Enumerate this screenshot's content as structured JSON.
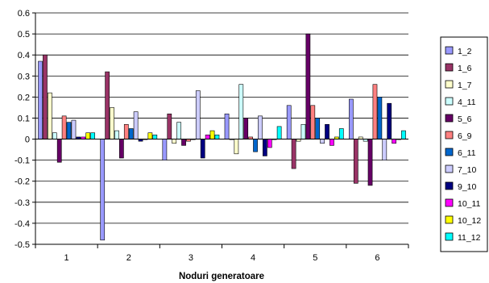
{
  "chart_data": {
    "type": "bar",
    "title": "",
    "xlabel": "Noduri generatoare",
    "ylabel": "",
    "categories": [
      "1",
      "2",
      "3",
      "4",
      "5",
      "6"
    ],
    "ylim": [
      -0.5,
      0.6
    ],
    "yticks": [
      0.6,
      0.5,
      0.4,
      0.3,
      0.2,
      0.1,
      0,
      -0.1,
      -0.2,
      -0.3,
      -0.4,
      -0.5
    ],
    "yticklabels": [
      "0.6",
      "0.5",
      "0.4",
      "0.3",
      "0.2",
      "0.1",
      "0",
      "-0.1",
      "-0.2",
      "-0.3",
      "-0.4",
      "-0.5"
    ],
    "grid": true,
    "legend_position": "right",
    "series": [
      {
        "name": "1_2",
        "color": "#9999ff",
        "values": [
          0.37,
          -0.48,
          -0.1,
          0.12,
          0.16,
          0.19
        ]
      },
      {
        "name": "1_6",
        "color": "#993366",
        "values": [
          0.4,
          0.32,
          0.12,
          0.0,
          -0.14,
          -0.21
        ]
      },
      {
        "name": "1_7",
        "color": "#ffffcc",
        "values": [
          0.22,
          0.15,
          -0.02,
          -0.07,
          -0.01,
          0.01
        ]
      },
      {
        "name": "4_11",
        "color": "#ccffff",
        "values": [
          0.03,
          0.04,
          0.08,
          0.26,
          0.07,
          -0.01
        ]
      },
      {
        "name": "5_6",
        "color": "#660066",
        "values": [
          -0.11,
          -0.09,
          -0.03,
          0.1,
          0.5,
          -0.22
        ]
      },
      {
        "name": "6_9",
        "color": "#ff8080",
        "values": [
          0.11,
          0.07,
          -0.01,
          0.01,
          0.16,
          0.26
        ]
      },
      {
        "name": "6_11",
        "color": "#0066cc",
        "values": [
          0.08,
          0.05,
          0.0,
          -0.06,
          0.1,
          0.2
        ]
      },
      {
        "name": "7_10",
        "color": "#ccccff",
        "values": [
          0.09,
          0.13,
          0.23,
          0.11,
          -0.02,
          -0.1
        ]
      },
      {
        "name": "9_10",
        "color": "#000080",
        "values": [
          0.01,
          -0.01,
          -0.09,
          -0.08,
          0.07,
          0.17
        ]
      },
      {
        "name": "10_11",
        "color": "#ff00ff",
        "values": [
          0.01,
          0.0,
          0.02,
          -0.04,
          -0.03,
          -0.02
        ]
      },
      {
        "name": "10_12",
        "color": "#ffff00",
        "values": [
          0.03,
          0.03,
          0.04,
          0.0,
          0.01,
          0.0
        ]
      },
      {
        "name": "11_12",
        "color": "#00ffff",
        "values": [
          0.03,
          0.02,
          0.02,
          0.06,
          0.05,
          0.04
        ]
      }
    ]
  }
}
